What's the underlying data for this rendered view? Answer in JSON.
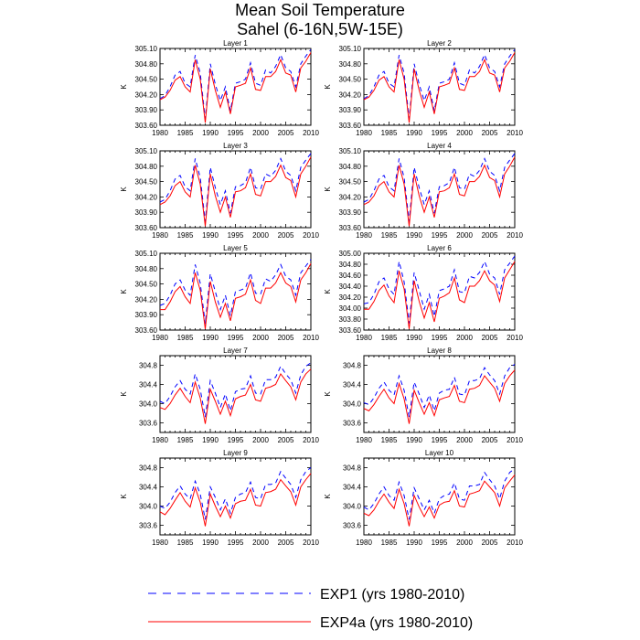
{
  "chart_data": {
    "type": "line",
    "title": "Mean Soil Temperature",
    "subtitle": "Sahel (6-16N,5W-15E)",
    "ylabel": "K",
    "x": [
      1980,
      1981,
      1982,
      1983,
      1984,
      1985,
      1986,
      1987,
      1988,
      1989,
      1990,
      1991,
      1992,
      1993,
      1994,
      1995,
      1996,
      1997,
      1998,
      1999,
      2000,
      2001,
      2002,
      2003,
      2004,
      2005,
      2006,
      2007,
      2008,
      2009,
      2010
    ],
    "xticks": [
      1980,
      1985,
      1990,
      1995,
      2000,
      2005,
      2010
    ],
    "xlim": [
      1980,
      2010
    ],
    "legend": {
      "position": "bottom",
      "entries": [
        {
          "name": "EXP1 (yrs 1980-2010)",
          "color": "#0000ff",
          "style": "dashed"
        },
        {
          "name": "EXP4a (yrs 1980-2010)",
          "color": "#ff0000",
          "style": "solid"
        }
      ]
    },
    "panels": [
      {
        "title": "Layer 1",
        "ylim": [
          303.6,
          305.1
        ],
        "yticks": [
          "303.60",
          "303.90",
          "304.20",
          "304.50",
          "304.80",
          "305.10"
        ],
        "series": [
          {
            "name": "EXP1",
            "values": [
              304.12,
              304.18,
              304.35,
              304.58,
              304.65,
              304.42,
              304.35,
              304.97,
              304.62,
              303.72,
              304.8,
              304.4,
              304.08,
              304.35,
              303.88,
              304.42,
              304.45,
              304.5,
              304.82,
              304.42,
              304.38,
              304.68,
              304.62,
              304.75,
              304.98,
              304.72,
              304.65,
              304.35,
              304.8,
              304.95,
              305.08
            ]
          },
          {
            "name": "EXP4a",
            "values": [
              304.1,
              304.15,
              304.28,
              304.48,
              304.55,
              304.35,
              304.25,
              304.88,
              304.5,
              303.65,
              304.7,
              304.28,
              303.95,
              304.25,
              303.82,
              304.35,
              304.38,
              304.42,
              304.72,
              304.3,
              304.28,
              304.55,
              304.55,
              304.65,
              304.88,
              304.62,
              304.58,
              304.25,
              304.72,
              304.85,
              305.02
            ]
          }
        ]
      },
      {
        "title": "Layer 2",
        "ylim": [
          303.6,
          305.1
        ],
        "yticks": [
          "303.60",
          "303.90",
          "304.20",
          "304.50",
          "304.80",
          "305.10"
        ],
        "series": [
          {
            "name": "EXP1",
            "values": [
              304.12,
              304.18,
              304.35,
              304.58,
              304.65,
              304.42,
              304.35,
              304.97,
              304.62,
              303.72,
              304.8,
              304.4,
              304.08,
              304.35,
              303.88,
              304.42,
              304.45,
              304.5,
              304.82,
              304.42,
              304.38,
              304.68,
              304.62,
              304.75,
              304.98,
              304.72,
              304.65,
              304.35,
              304.8,
              304.95,
              305.08
            ]
          },
          {
            "name": "EXP4a",
            "values": [
              304.1,
              304.15,
              304.28,
              304.48,
              304.55,
              304.35,
              304.25,
              304.88,
              304.5,
              303.65,
              304.7,
              304.28,
              303.95,
              304.25,
              303.82,
              304.35,
              304.38,
              304.42,
              304.72,
              304.3,
              304.28,
              304.55,
              304.55,
              304.65,
              304.88,
              304.62,
              304.58,
              304.25,
              304.72,
              304.85,
              305.02
            ]
          }
        ]
      },
      {
        "title": "Layer 3",
        "ylim": [
          303.6,
          305.1
        ],
        "yticks": [
          "303.60",
          "303.90",
          "304.20",
          "304.50",
          "304.80",
          "305.10"
        ],
        "series": [
          {
            "name": "EXP1",
            "values": [
              304.1,
              304.15,
              304.32,
              304.55,
              304.62,
              304.4,
              304.32,
              304.95,
              304.58,
              303.72,
              304.78,
              304.38,
              304.05,
              304.32,
              303.88,
              304.4,
              304.42,
              304.48,
              304.78,
              304.38,
              304.35,
              304.65,
              304.6,
              304.72,
              304.95,
              304.7,
              304.62,
              304.32,
              304.78,
              304.92,
              305.05
            ]
          },
          {
            "name": "EXP4a",
            "values": [
              304.05,
              304.1,
              304.22,
              304.42,
              304.5,
              304.3,
              304.2,
              304.82,
              304.45,
              303.63,
              304.65,
              304.22,
              303.9,
              304.2,
              303.8,
              304.3,
              304.32,
              304.38,
              304.65,
              304.25,
              304.22,
              304.5,
              304.5,
              304.6,
              304.82,
              304.58,
              304.52,
              304.2,
              304.65,
              304.8,
              304.98
            ]
          }
        ]
      },
      {
        "title": "Layer 4",
        "ylim": [
          303.6,
          305.1
        ],
        "yticks": [
          "303.60",
          "303.90",
          "304.20",
          "304.50",
          "304.80",
          "305.10"
        ],
        "series": [
          {
            "name": "EXP1",
            "values": [
              304.1,
              304.15,
              304.32,
              304.55,
              304.62,
              304.4,
              304.32,
              304.95,
              304.58,
              303.72,
              304.78,
              304.38,
              304.05,
              304.32,
              303.88,
              304.4,
              304.42,
              304.48,
              304.78,
              304.38,
              304.35,
              304.65,
              304.6,
              304.72,
              304.95,
              304.7,
              304.62,
              304.32,
              304.78,
              304.92,
              305.05
            ]
          },
          {
            "name": "EXP4a",
            "values": [
              304.05,
              304.1,
              304.22,
              304.42,
              304.5,
              304.3,
              304.2,
              304.82,
              304.45,
              303.63,
              304.65,
              304.22,
              303.9,
              304.2,
              303.8,
              304.3,
              304.32,
              304.38,
              304.65,
              304.25,
              304.22,
              304.5,
              304.5,
              304.6,
              304.82,
              304.58,
              304.52,
              304.2,
              304.65,
              304.8,
              304.98
            ]
          }
        ]
      },
      {
        "title": "Layer 5",
        "ylim": [
          303.6,
          305.1
        ],
        "yticks": [
          "303.60",
          "303.90",
          "304.20",
          "304.50",
          "304.80",
          "305.10"
        ],
        "series": [
          {
            "name": "EXP1",
            "values": [
              304.08,
              304.12,
              304.28,
              304.5,
              304.58,
              304.38,
              304.28,
              304.88,
              304.52,
              303.72,
              304.7,
              304.35,
              304.0,
              304.28,
              303.88,
              304.35,
              304.38,
              304.42,
              304.72,
              304.32,
              304.3,
              304.6,
              304.55,
              304.68,
              304.88,
              304.65,
              304.58,
              304.28,
              304.72,
              304.85,
              304.98
            ]
          },
          {
            "name": "EXP4a",
            "values": [
              304.0,
              304.0,
              304.15,
              304.35,
              304.45,
              304.25,
              304.12,
              304.72,
              304.38,
              303.62,
              304.55,
              304.15,
              303.85,
              304.12,
              303.78,
              304.22,
              304.25,
              304.3,
              304.58,
              304.18,
              304.12,
              304.42,
              304.42,
              304.52,
              304.72,
              304.52,
              304.45,
              304.15,
              304.58,
              304.72,
              304.9
            ]
          }
        ]
      },
      {
        "title": "Layer 6",
        "ylim": [
          303.6,
          305.0
        ],
        "yticks": [
          "303.60",
          "303.80",
          "304.00",
          "304.20",
          "304.40",
          "304.60",
          "304.80",
          "305.00"
        ],
        "series": [
          {
            "name": "EXP1",
            "values": [
              304.08,
              304.1,
              304.25,
              304.48,
              304.55,
              304.35,
              304.25,
              304.85,
              304.48,
              303.72,
              304.65,
              304.32,
              303.98,
              304.25,
              303.85,
              304.32,
              304.35,
              304.4,
              304.7,
              304.3,
              304.28,
              304.58,
              304.55,
              304.65,
              304.85,
              304.62,
              304.55,
              304.25,
              304.7,
              304.82,
              304.95
            ]
          },
          {
            "name": "EXP4a",
            "values": [
              303.98,
              303.98,
              304.12,
              304.32,
              304.42,
              304.22,
              304.1,
              304.68,
              304.35,
              303.62,
              304.5,
              304.12,
              303.82,
              304.1,
              303.75,
              304.18,
              304.22,
              304.28,
              304.55,
              304.15,
              304.1,
              304.4,
              304.4,
              304.5,
              304.68,
              304.5,
              304.42,
              304.12,
              304.55,
              304.7,
              304.85
            ]
          }
        ]
      },
      {
        "title": "Layer 7",
        "ylim": [
          303.4,
          305.0
        ],
        "yticks": [
          "303.6",
          "304.0",
          "304.4",
          "304.8"
        ],
        "series": [
          {
            "name": "EXP1",
            "values": [
              304.05,
              304.0,
              304.15,
              304.35,
              304.48,
              304.3,
              304.2,
              304.62,
              304.3,
              303.72,
              304.48,
              304.22,
              303.92,
              304.2,
              303.85,
              304.25,
              304.3,
              304.32,
              304.58,
              304.22,
              304.2,
              304.5,
              304.5,
              304.55,
              304.78,
              304.62,
              304.5,
              304.22,
              304.6,
              304.78,
              304.85
            ]
          },
          {
            "name": "EXP4a",
            "values": [
              303.92,
              303.88,
              304.0,
              304.18,
              304.32,
              304.15,
              304.02,
              304.45,
              304.12,
              303.58,
              304.3,
              304.05,
              303.78,
              304.05,
              303.75,
              304.1,
              304.15,
              304.18,
              304.4,
              304.08,
              304.05,
              304.32,
              304.35,
              304.4,
              304.62,
              304.48,
              304.35,
              304.08,
              304.45,
              304.62,
              304.72
            ]
          }
        ]
      },
      {
        "title": "Layer 8",
        "ylim": [
          303.4,
          305.0
        ],
        "yticks": [
          "303.6",
          "304.0",
          "304.4",
          "304.8"
        ],
        "series": [
          {
            "name": "EXP1",
            "values": [
              304.02,
              303.98,
              304.12,
              304.32,
              304.45,
              304.28,
              304.18,
              304.58,
              304.28,
              303.72,
              304.45,
              304.2,
              303.92,
              304.18,
              303.85,
              304.22,
              304.28,
              304.3,
              304.55,
              304.2,
              304.18,
              304.48,
              304.48,
              304.52,
              304.75,
              304.6,
              304.48,
              304.2,
              304.58,
              304.75,
              304.82
            ]
          },
          {
            "name": "EXP4a",
            "values": [
              303.9,
              303.85,
              303.98,
              304.15,
              304.3,
              304.12,
              304.0,
              304.42,
              304.1,
              303.58,
              304.28,
              304.02,
              303.78,
              304.02,
              303.75,
              304.08,
              304.12,
              304.15,
              304.38,
              304.05,
              304.02,
              304.3,
              304.32,
              304.38,
              304.58,
              304.45,
              304.32,
              304.05,
              304.42,
              304.58,
              304.7
            ]
          }
        ]
      },
      {
        "title": "Layer 9",
        "ylim": [
          303.4,
          305.0
        ],
        "yticks": [
          "303.6",
          "304.0",
          "304.4",
          "304.8"
        ],
        "series": [
          {
            "name": "EXP1",
            "values": [
              304.0,
              303.95,
              304.08,
              304.28,
              304.42,
              304.25,
              304.15,
              304.52,
              304.25,
              303.72,
              304.4,
              304.18,
              303.92,
              304.15,
              303.85,
              304.18,
              304.25,
              304.28,
              304.5,
              304.18,
              304.15,
              304.45,
              304.45,
              304.48,
              304.72,
              304.58,
              304.45,
              304.18,
              304.55,
              304.72,
              304.8
            ]
          },
          {
            "name": "EXP4a",
            "values": [
              303.88,
              303.82,
              303.95,
              304.12,
              304.28,
              304.1,
              303.98,
              304.38,
              304.08,
              303.58,
              304.25,
              304.0,
              303.78,
              304.0,
              303.75,
              304.05,
              304.1,
              304.12,
              304.35,
              304.02,
              304.0,
              304.28,
              304.3,
              304.35,
              304.55,
              304.42,
              304.3,
              304.02,
              304.4,
              304.55,
              304.68
            ]
          }
        ]
      },
      {
        "title": "Layer 10",
        "ylim": [
          303.4,
          305.0
        ],
        "yticks": [
          "303.6",
          "304.0",
          "304.4",
          "304.8"
        ],
        "series": [
          {
            "name": "EXP1",
            "values": [
              303.98,
              303.92,
              304.05,
              304.25,
              304.4,
              304.22,
              304.12,
              304.5,
              304.22,
              303.72,
              304.38,
              304.15,
              303.92,
              304.12,
              303.85,
              304.15,
              304.22,
              304.25,
              304.48,
              304.15,
              304.12,
              304.42,
              304.42,
              304.45,
              304.7,
              304.55,
              304.42,
              304.15,
              304.52,
              304.7,
              304.78
            ]
          },
          {
            "name": "EXP4a",
            "values": [
              303.85,
              303.8,
              303.92,
              304.1,
              304.25,
              304.08,
              303.95,
              304.35,
              304.05,
              303.58,
              304.22,
              303.98,
              303.78,
              303.98,
              303.75,
              304.02,
              304.08,
              304.1,
              304.32,
              304.0,
              303.98,
              304.25,
              304.28,
              304.32,
              304.52,
              304.4,
              304.28,
              304.0,
              304.38,
              304.52,
              304.65
            ]
          }
        ]
      }
    ]
  }
}
